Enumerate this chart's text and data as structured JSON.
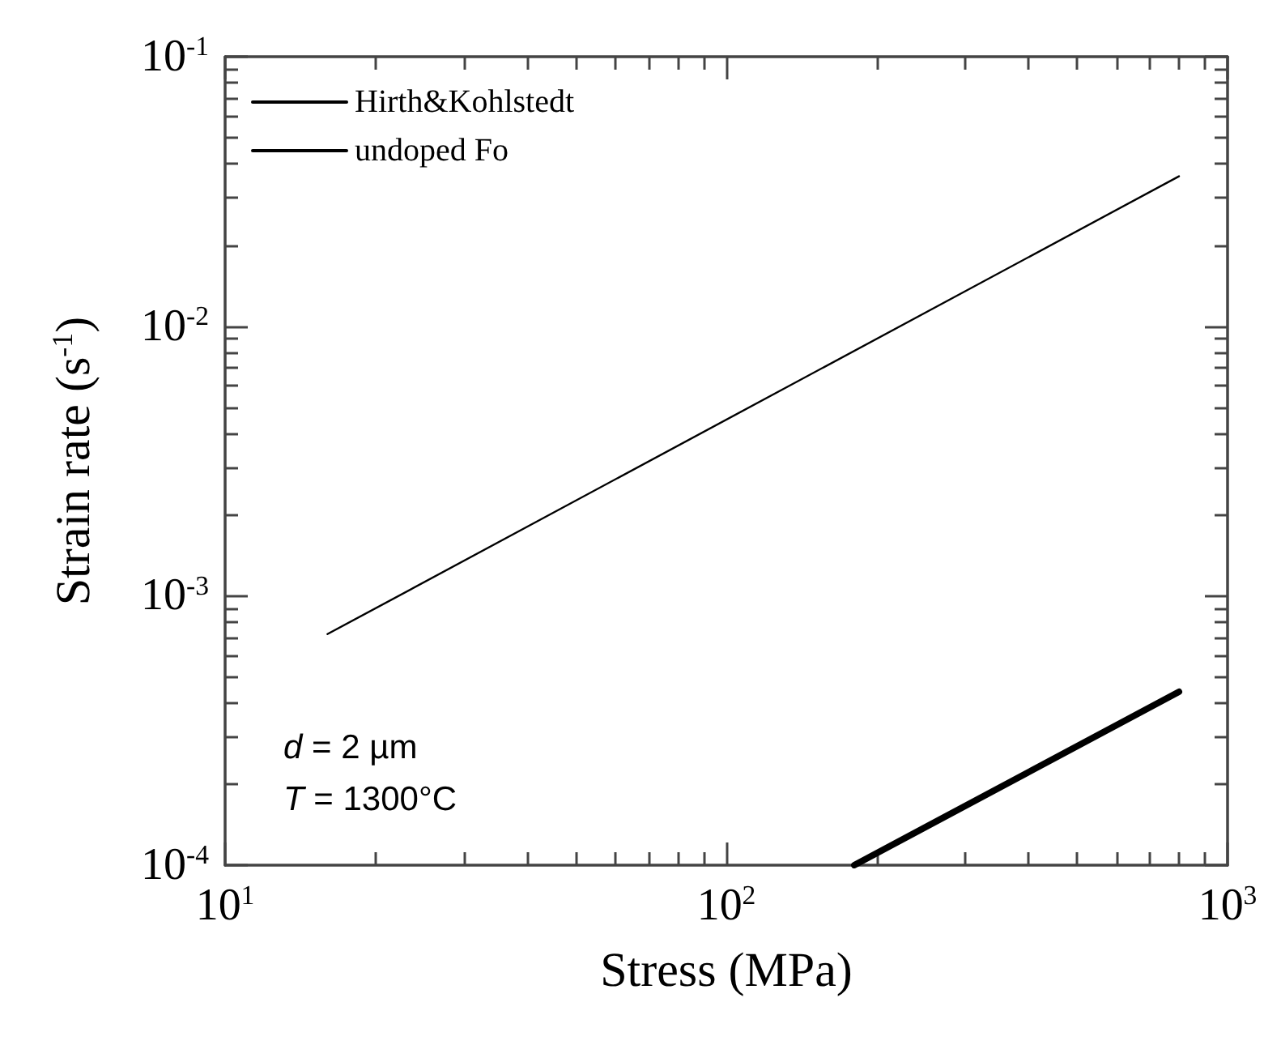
{
  "chart_data": {
    "type": "line",
    "xlabel": "Stress (MPa)",
    "ylabel": "Strain rate (s$^{-1}$)",
    "log": "xy",
    "grid": false,
    "legend": "top left",
    "marker": "none",
    "line_style": "solid",
    "xlim": [
      10,
      1000
    ],
    "ylim": [
      0.0001,
      0.1
    ],
    "xticks": [
      {
        "value": 10,
        "label": "10$^{1}$"
      },
      {
        "value": 20,
        "label": null
      },
      {
        "value": 30,
        "label": null
      },
      {
        "value": 40,
        "label": null
      },
      {
        "value": 50,
        "label": null
      },
      {
        "value": 60,
        "label": null
      },
      {
        "value": 70,
        "label": null
      },
      {
        "value": 80,
        "label": null
      },
      {
        "value": 90,
        "label": null
      },
      {
        "value": 100,
        "label": "10$^{2}$"
      },
      {
        "value": 200,
        "label": null
      },
      {
        "value": 300,
        "label": null
      },
      {
        "value": 400,
        "label": null
      },
      {
        "value": 500,
        "label": null
      },
      {
        "value": 600,
        "label": null
      },
      {
        "value": 700,
        "label": null
      },
      {
        "value": 800,
        "label": null
      },
      {
        "value": 900,
        "label": null
      },
      {
        "value": 1000,
        "label": "10$^{3}$"
      }
    ],
    "yticks": [
      {
        "value": 0.0001,
        "label": "10$^{-4}$"
      },
      {
        "value": 0.0002,
        "label": null
      },
      {
        "value": 0.0003,
        "label": null
      },
      {
        "value": 0.0004,
        "label": null
      },
      {
        "value": 0.0005,
        "label": null
      },
      {
        "value": 0.0006,
        "label": null
      },
      {
        "value": 0.0007,
        "label": null
      },
      {
        "value": 0.0008,
        "label": null
      },
      {
        "value": 0.0009,
        "label": null
      },
      {
        "value": 0.001,
        "label": "10$^{-3}$"
      },
      {
        "value": 0.002,
        "label": null
      },
      {
        "value": 0.003,
        "label": null
      },
      {
        "value": 0.004,
        "label": null
      },
      {
        "value": 0.005,
        "label": null
      },
      {
        "value": 0.006,
        "label": null
      },
      {
        "value": 0.007,
        "label": null
      },
      {
        "value": 0.008,
        "label": null
      },
      {
        "value": 0.009,
        "label": null
      },
      {
        "value": 0.01,
        "label": "10$^{-2}$"
      },
      {
        "value": 0.02,
        "label": null
      },
      {
        "value": 0.03,
        "label": null
      },
      {
        "value": 0.04,
        "label": null
      },
      {
        "value": 0.05,
        "label": null
      },
      {
        "value": 0.06,
        "label": null
      },
      {
        "value": 0.07,
        "label": null
      },
      {
        "value": 0.08,
        "label": null
      },
      {
        "value": 0.09,
        "label": null
      },
      {
        "value": 0.1,
        "label": "10$^{-1}$"
      }
    ],
    "series": [
      {
        "name": "Hirth&Kohlstedt",
        "color": "#000000",
        "x": [
          16,
          800
        ],
        "values": [
          0.00072,
          0.036
        ]
      },
      {
        "name": "undoped Fo",
        "color": "#000000",
        "x": [
          180,
          800
        ],
        "values": [
          0.0001,
          0.00044
        ]
      }
    ],
    "annotations": [
      "d = 2 µm",
      "T = 1300°C"
    ]
  }
}
